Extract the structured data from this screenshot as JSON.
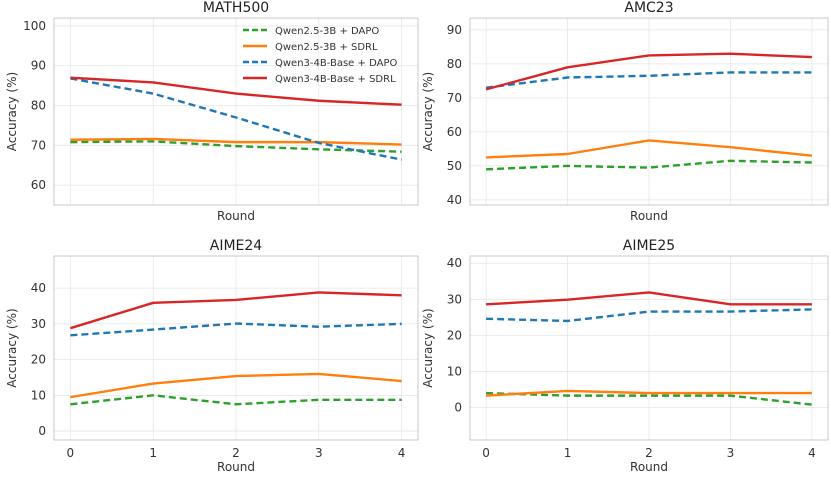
{
  "chart_data": [
    {
      "type": "line",
      "title": "MATH500",
      "xlabel": "Round",
      "ylabel": "Accuracy (%)",
      "x": [
        0,
        1,
        2,
        3,
        4
      ],
      "x_ticks_shown": false,
      "ylim": [
        55,
        102
      ],
      "yticks": [
        60,
        70,
        80,
        90,
        100
      ],
      "grid": true,
      "legend": "top-right",
      "series": [
        {
          "name": "Qwen2.5-3B + DAPO",
          "color": "#2ca02c",
          "style": "dashed",
          "values": [
            70.8,
            71.0,
            69.8,
            69.0,
            68.4
          ]
        },
        {
          "name": "Qwen2.5-3B + SDRL",
          "color": "#ff7f0e",
          "style": "solid",
          "values": [
            71.4,
            71.6,
            70.8,
            70.8,
            70.2
          ]
        },
        {
          "name": "Qwen3-4B-Base + DAPO",
          "color": "#1f77b4",
          "style": "dashed",
          "values": [
            86.8,
            83.0,
            77.0,
            70.6,
            66.4
          ]
        },
        {
          "name": "Qwen3-4B-Base + SDRL",
          "color": "#d62728",
          "style": "solid",
          "values": [
            87.0,
            85.8,
            83.0,
            81.2,
            80.2
          ]
        }
      ]
    },
    {
      "type": "line",
      "title": "AMC23",
      "xlabel": "Round",
      "ylabel": "Accuracy (%)",
      "x": [
        0,
        1,
        2,
        3,
        4
      ],
      "x_ticks_shown": false,
      "ylim": [
        38.5,
        93.5
      ],
      "yticks": [
        40,
        50,
        60,
        70,
        80,
        90
      ],
      "grid": true,
      "series": [
        {
          "name": "Qwen2.5-3B + DAPO",
          "color": "#2ca02c",
          "style": "dashed",
          "values": [
            49.0,
            50.0,
            49.5,
            51.5,
            51.0
          ]
        },
        {
          "name": "Qwen2.5-3B + SDRL",
          "color": "#ff7f0e",
          "style": "solid",
          "values": [
            52.5,
            53.5,
            57.5,
            55.5,
            53.0
          ]
        },
        {
          "name": "Qwen3-4B-Base + DAPO",
          "color": "#1f77b4",
          "style": "dashed",
          "values": [
            73.0,
            76.0,
            76.5,
            77.5,
            77.5
          ]
        },
        {
          "name": "Qwen3-4B-Base + SDRL",
          "color": "#d62728",
          "style": "solid",
          "values": [
            72.5,
            79.0,
            82.5,
            83.0,
            82.0
          ]
        }
      ]
    },
    {
      "type": "line",
      "title": "AIME24",
      "xlabel": "Round",
      "ylabel": "Accuracy (%)",
      "x": [
        0,
        1,
        2,
        3,
        4
      ],
      "x_ticks_shown": true,
      "ylim": [
        -2.5,
        49
      ],
      "yticks": [
        0,
        10,
        20,
        30,
        40
      ],
      "grid": true,
      "series": [
        {
          "name": "Qwen2.5-3B + DAPO",
          "color": "#2ca02c",
          "style": "dashed",
          "values": [
            7.5,
            10.0,
            7.5,
            8.75,
            8.75
          ]
        },
        {
          "name": "Qwen2.5-3B + SDRL",
          "color": "#ff7f0e",
          "style": "solid",
          "values": [
            9.5,
            13.3,
            15.4,
            16.0,
            14.0
          ]
        },
        {
          "name": "Qwen3-4B-Base + DAPO",
          "color": "#1f77b4",
          "style": "dashed",
          "values": [
            26.8,
            28.4,
            30.1,
            29.2,
            30.0
          ]
        },
        {
          "name": "Qwen3-4B-Base + SDRL",
          "color": "#d62728",
          "style": "solid",
          "values": [
            28.8,
            35.9,
            36.7,
            38.8,
            38.0
          ]
        }
      ]
    },
    {
      "type": "line",
      "title": "AIME25",
      "xlabel": "Round",
      "ylabel": "Accuracy (%)",
      "x": [
        0,
        1,
        2,
        3,
        4
      ],
      "x_ticks_shown": true,
      "ylim": [
        -9,
        42
      ],
      "yticks": [
        0,
        10,
        20,
        30,
        40
      ],
      "grid": true,
      "series": [
        {
          "name": "Qwen2.5-3B + DAPO",
          "color": "#2ca02c",
          "style": "dashed",
          "values": [
            4.0,
            3.3,
            3.3,
            3.3,
            0.8
          ]
        },
        {
          "name": "Qwen2.5-3B + SDRL",
          "color": "#ff7f0e",
          "style": "solid",
          "values": [
            3.3,
            4.6,
            4.0,
            4.0,
            4.0
          ]
        },
        {
          "name": "Qwen3-4B-Base + DAPO",
          "color": "#1f77b4",
          "style": "dashed",
          "values": [
            24.6,
            24.0,
            26.6,
            26.6,
            27.2
          ]
        },
        {
          "name": "Qwen3-4B-Base + SDRL",
          "color": "#d62728",
          "style": "solid",
          "values": [
            28.6,
            29.9,
            31.9,
            28.6,
            28.6
          ]
        }
      ]
    }
  ]
}
